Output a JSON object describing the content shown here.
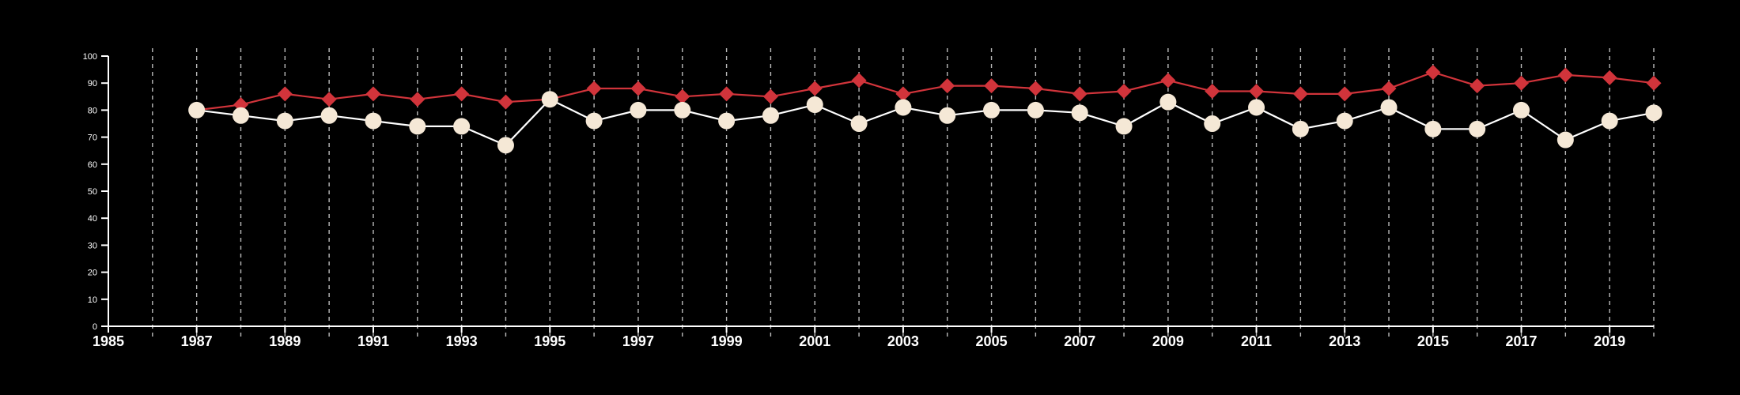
{
  "chart_data": {
    "type": "line",
    "title": "",
    "xlabel": "",
    "ylabel": "",
    "xlim": [
      1985,
      2020
    ],
    "ylim": [
      0,
      100
    ],
    "y_ticks": [
      0,
      10,
      20,
      30,
      40,
      50,
      60,
      70,
      80,
      90,
      100
    ],
    "x_ticks": [
      1985,
      1987,
      1989,
      1991,
      1993,
      1995,
      1997,
      1999,
      2001,
      2003,
      2005,
      2007,
      2009,
      2011,
      2013,
      2015,
      2017,
      2019
    ],
    "x_gridlines": [
      1986,
      1987,
      1988,
      1989,
      1990,
      1991,
      1992,
      1993,
      1994,
      1995,
      1996,
      1997,
      1998,
      1999,
      2000,
      2001,
      2002,
      2003,
      2004,
      2005,
      2006,
      2007,
      2008,
      2009,
      2010,
      2011,
      2012,
      2013,
      2014,
      2015,
      2016,
      2017,
      2018,
      2019,
      2020
    ],
    "grid": "vertical dashed",
    "legend": "none",
    "x": [
      1987,
      1988,
      1989,
      1990,
      1991,
      1992,
      1993,
      1994,
      1995,
      1996,
      1997,
      1998,
      1999,
      2000,
      2001,
      2002,
      2003,
      2004,
      2005,
      2006,
      2007,
      2008,
      2009,
      2010,
      2011,
      2012,
      2013,
      2014,
      2015,
      2016,
      2017,
      2018,
      2019,
      2020
    ],
    "series": [
      {
        "marker": "diamond",
        "color": "#d1343b",
        "values": [
          80,
          82,
          86,
          84,
          86,
          84,
          86,
          83,
          84,
          88,
          88,
          85,
          86,
          85,
          88,
          91,
          86,
          89,
          89,
          88,
          86,
          87,
          91,
          87,
          87,
          86,
          86,
          88,
          94,
          89,
          90,
          93,
          92,
          90
        ]
      },
      {
        "marker": "circle",
        "color": "#f5e8d6",
        "line_color": "#ffffff",
        "values": [
          80,
          78,
          76,
          78,
          76,
          74,
          74,
          67,
          84,
          76,
          80,
          80,
          76,
          78,
          82,
          75,
          81,
          78,
          80,
          80,
          79,
          74,
          83,
          75,
          81,
          73,
          76,
          81,
          73,
          73,
          80,
          69,
          76,
          79
        ]
      }
    ]
  }
}
